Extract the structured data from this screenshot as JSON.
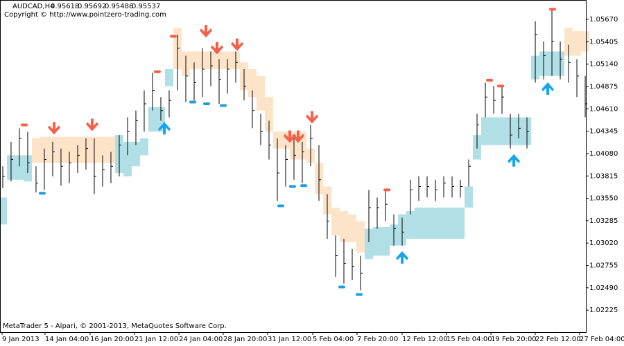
{
  "chart_data": {
    "type": "ohlc",
    "title": "AUDCAD,H4",
    "header_values": [
      0.95618,
      0.95692,
      0.95486,
      0.95537
    ],
    "subtitle": "Copyright © http://www.pointzero-trading.com",
    "footer": "MetaTrader 5 - Alpari, © 2001-2013, MetaQuotes Software Corp.",
    "bar_color": "#000000",
    "high": [
      1.0393,
      1.0422,
      1.0438,
      1.0434,
      1.0393,
      1.0414,
      1.0422,
      1.0414,
      1.041,
      1.0418,
      1.0426,
      1.0426,
      1.0406,
      1.041,
      1.043,
      1.0451,
      1.0459,
      1.0483,
      1.0504,
      1.0475,
      1.0483,
      1.0549,
      1.0524,
      1.0516,
      1.0533,
      1.0529,
      1.052,
      1.052,
      1.0529,
      1.0508,
      1.0483,
      1.0455,
      1.0447,
      1.0426,
      1.0418,
      1.0426,
      1.0422,
      1.0442,
      1.0418,
      1.036,
      1.0311,
      1.0307,
      1.0295,
      1.0287,
      1.0365,
      1.0356,
      1.0365,
      1.0336,
      1.0332,
      1.0377,
      1.0381,
      1.0381,
      1.0377,
      1.0381,
      1.0381,
      1.0377,
      1.0401,
      1.0455,
      1.0492,
      1.0488,
      1.0488,
      1.0455,
      1.0455,
      1.0451,
      1.0565,
      1.0541,
      1.0578,
      1.0541,
      1.0537,
      1.052,
      1.05
    ],
    "low": [
      1.0367,
      1.0375,
      1.0393,
      1.0385,
      1.0362,
      1.0365,
      1.0381,
      1.037,
      1.0373,
      1.0385,
      1.0389,
      1.036,
      1.0369,
      1.0373,
      1.0381,
      1.0406,
      1.0418,
      1.0434,
      1.0459,
      1.0447,
      1.0451,
      1.0483,
      1.0469,
      1.0471,
      1.0475,
      1.0488,
      1.0467,
      1.0479,
      1.0492,
      1.0471,
      1.0438,
      1.0418,
      1.0401,
      1.0352,
      1.0369,
      1.0377,
      1.0373,
      1.0393,
      1.0352,
      1.0307,
      1.0262,
      1.0254,
      1.0258,
      1.0246,
      1.0303,
      1.0319,
      1.0328,
      1.0299,
      1.0299,
      1.0336,
      1.0352,
      1.0356,
      1.0352,
      1.0356,
      1.0356,
      1.0356,
      1.0369,
      1.0414,
      1.0451,
      1.0455,
      1.0455,
      1.0414,
      1.0426,
      1.0414,
      1.0492,
      1.0496,
      1.05,
      1.0496,
      1.0492,
      1.0475,
      1.0451
    ],
    "close": [
      1.0381,
      1.0401,
      1.0426,
      1.0397,
      1.0373,
      1.0401,
      1.041,
      1.0393,
      1.0397,
      1.0406,
      1.0414,
      1.0381,
      1.0389,
      1.0393,
      1.0418,
      1.0434,
      1.0447,
      1.0467,
      1.0483,
      1.0459,
      1.0471,
      1.0533,
      1.05,
      1.0492,
      1.0508,
      1.0512,
      1.0496,
      1.0508,
      1.0516,
      1.0488,
      1.0459,
      1.0434,
      1.0418,
      1.0385,
      1.0401,
      1.0406,
      1.041,
      1.0426,
      1.0377,
      1.0328,
      1.0287,
      1.0278,
      1.0274,
      1.0266,
      1.0344,
      1.0344,
      1.0348,
      1.0319,
      1.0315,
      1.0365,
      1.0369,
      1.0369,
      1.0365,
      1.0373,
      1.0369,
      1.0369,
      1.0393,
      1.0442,
      1.0475,
      1.0471,
      1.0475,
      1.043,
      1.0438,
      1.0434,
      1.0549,
      1.0524,
      1.0541,
      1.052,
      1.0516,
      1.05,
      1.0467
    ],
    "bands": [
      {
        "color": "#b0dfe6",
        "upper": [
          1.0356,
          1.0406,
          1.0406,
          1.0406,
          null,
          null,
          null,
          null,
          null,
          null,
          null,
          null,
          null,
          null,
          1.043,
          1.0422,
          1.0422,
          1.0426,
          1.0463,
          1.0463,
          1.0508,
          null,
          null,
          null,
          null,
          null,
          null,
          null,
          null,
          null,
          null,
          null,
          null,
          null,
          null,
          null,
          null,
          null,
          null,
          null,
          null,
          null,
          null,
          null,
          1.0319,
          1.0321,
          1.0321,
          1.0324,
          1.0336,
          1.034,
          1.0344,
          1.0344,
          1.0344,
          1.0344,
          1.0344,
          1.0344,
          1.0369,
          1.043,
          1.0451,
          1.0451,
          1.0451,
          1.0451,
          1.0451,
          1.0451,
          1.0524,
          1.0529,
          1.0529,
          1.0529,
          null,
          null,
          null
        ],
        "lower": [
          1.0324,
          1.0377,
          1.0377,
          1.0375,
          null,
          null,
          null,
          null,
          null,
          null,
          null,
          null,
          null,
          null,
          1.0385,
          1.0381,
          1.0393,
          1.0406,
          1.0434,
          1.0434,
          1.0488,
          null,
          null,
          null,
          null,
          null,
          null,
          null,
          null,
          null,
          null,
          null,
          null,
          null,
          null,
          null,
          null,
          null,
          null,
          null,
          null,
          null,
          null,
          null,
          1.0283,
          1.0287,
          1.0287,
          1.0299,
          1.0299,
          1.0307,
          1.0307,
          1.0307,
          1.0307,
          1.0307,
          1.0307,
          1.0307,
          1.0344,
          1.0401,
          1.0418,
          1.0418,
          1.0418,
          1.0418,
          1.0418,
          1.0418,
          1.0496,
          1.05,
          1.05,
          1.05,
          null,
          null,
          null
        ]
      },
      {
        "color": "#fde3c8",
        "upper": [
          null,
          null,
          null,
          null,
          1.0426,
          1.0428,
          1.0428,
          1.0428,
          1.0428,
          1.0428,
          1.0428,
          1.0428,
          1.0428,
          1.0428,
          null,
          null,
          null,
          null,
          null,
          null,
          null,
          1.0557,
          1.0529,
          1.0529,
          1.0529,
          1.0529,
          1.0529,
          1.0529,
          1.0529,
          1.0516,
          1.0508,
          1.05,
          1.0475,
          1.0434,
          1.0434,
          1.0434,
          1.0434,
          1.0414,
          1.0397,
          1.0369,
          1.0344,
          1.034,
          1.0336,
          1.0328,
          null,
          null,
          null,
          null,
          null,
          null,
          null,
          null,
          null,
          null,
          null,
          null,
          null,
          null,
          null,
          null,
          null,
          null,
          null,
          null,
          null,
          null,
          null,
          null,
          1.0557,
          1.0553,
          1.0553
        ],
        "lower": [
          null,
          null,
          null,
          null,
          1.0397,
          1.0397,
          1.0397,
          1.0397,
          1.0397,
          1.0397,
          1.0397,
          1.0397,
          1.0397,
          1.0397,
          null,
          null,
          null,
          null,
          null,
          null,
          null,
          1.0508,
          1.05,
          1.0508,
          1.0508,
          1.0508,
          1.0508,
          1.0508,
          1.0508,
          1.0483,
          1.0475,
          1.0459,
          1.0434,
          1.0414,
          1.0414,
          1.0401,
          1.0401,
          1.0397,
          1.036,
          1.0336,
          1.0311,
          1.0303,
          1.0303,
          1.0291,
          null,
          null,
          null,
          null,
          null,
          null,
          null,
          null,
          null,
          null,
          null,
          null,
          null,
          null,
          null,
          null,
          null,
          null,
          null,
          null,
          null,
          null,
          null,
          null,
          1.0524,
          1.0524,
          1.0529
        ]
      }
    ],
    "signals": [
      {
        "direction": "down",
        "color": "#f4604a",
        "x": [
          6.17,
          10.75,
          24.42,
          25.75,
          28.17,
          34.5,
          35.5,
          37.17
        ],
        "y": [
          1.0438,
          1.0442,
          1.0553,
          1.0533,
          1.0537,
          1.0428,
          1.0428,
          1.0451
        ]
      },
      {
        "direction": "up",
        "color": "#17a6ee",
        "x": [
          19.42,
          48,
          61.42,
          65.5
        ],
        "y": [
          1.0438,
          1.0285,
          1.04,
          1.0485
        ]
      }
    ],
    "extremes": [
      {
        "color": "#f4604a",
        "x": [
          2.58,
          18.58,
          20.5,
          46.17,
          58.5,
          59.83,
          66.08
        ],
        "y": [
          1.0442,
          1.0505,
          1.0547,
          1.0365,
          1.0495,
          1.0488,
          1.0579
        ]
      },
      {
        "color": "#1f9fe0",
        "x": [
          4.75,
          22.83,
          24.5,
          26.5,
          33.42,
          34.83,
          36.17,
          40.75,
          42.83
        ],
        "y": [
          1.0361,
          1.0469,
          1.0467,
          1.0465,
          1.0346,
          1.0369,
          1.037,
          1.025,
          1.0241
        ]
      }
    ],
    "xlim": [
      -0.33,
      70.08
    ],
    "ylim": [
      1.01964,
      1.059
    ],
    "xticks": [
      {
        "value": -0.08,
        "label": "9 Jan 2013"
      },
      {
        "value": 5.08,
        "label": "14 Jan 04:00"
      },
      {
        "value": 10.5,
        "label": "16 Jan 20:00"
      },
      {
        "value": 15.83,
        "label": "21 Jan 12:00"
      },
      {
        "value": 21.17,
        "label": "24 Jan 04:00"
      },
      {
        "value": 26.5,
        "label": "28 Jan 20:00"
      },
      {
        "value": 31.83,
        "label": "31 Jan 12:00"
      },
      {
        "value": 37.25,
        "label": "5 Feb 04:00"
      },
      {
        "value": 42.58,
        "label": "7 Feb 20:00"
      },
      {
        "value": 48,
        "label": "12 Feb 12:00"
      },
      {
        "value": 53.33,
        "label": "15 Feb 04:00"
      },
      {
        "value": 58.67,
        "label": "19 Feb 20:00"
      },
      {
        "value": 64,
        "label": "22 Feb 12:00"
      },
      {
        "value": 69.33,
        "label": "27 Feb 04:00"
      }
    ],
    "yticks": [
      {
        "value": 1.0567,
        "label": "1.05670"
      },
      {
        "value": 1.05405,
        "label": "1.05405"
      },
      {
        "value": 1.0514,
        "label": "1.05140"
      },
      {
        "value": 1.04875,
        "label": "1.04875"
      },
      {
        "value": 1.0461,
        "label": "1.04610"
      },
      {
        "value": 1.04345,
        "label": "1.04345"
      },
      {
        "value": 1.0408,
        "label": "1.04080"
      },
      {
        "value": 1.03815,
        "label": "1.03815"
      },
      {
        "value": 1.0355,
        "label": "1.03550"
      },
      {
        "value": 1.03285,
        "label": "1.03285"
      },
      {
        "value": 1.0302,
        "label": "1.03020"
      },
      {
        "value": 1.02755,
        "label": "1.02755"
      },
      {
        "value": 1.0249,
        "label": "1.02490"
      },
      {
        "value": 1.02225,
        "label": "1.02225"
      }
    ]
  }
}
